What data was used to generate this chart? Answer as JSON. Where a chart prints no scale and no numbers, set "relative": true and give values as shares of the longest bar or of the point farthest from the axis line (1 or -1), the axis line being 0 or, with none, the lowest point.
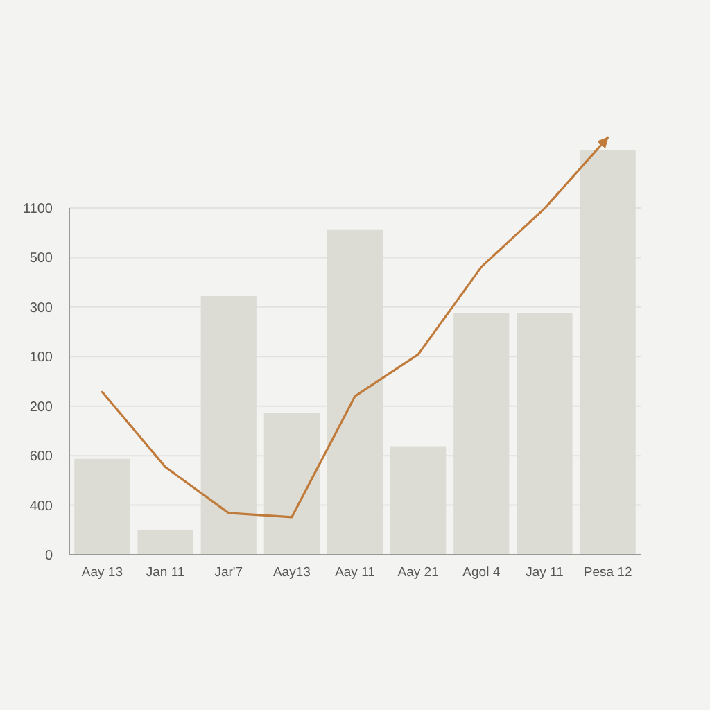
{
  "chart_data": {
    "type": "bar",
    "categories": [
      "Aay 13",
      "Jan 11",
      "Jar'7",
      "Aay13",
      "Aay 11",
      "Aay 21",
      "Agol 4",
      "Jay 11",
      "Pesa 12"
    ],
    "relative": true,
    "annotations": [
      "0",
      "400",
      "600",
      "200",
      "100",
      "300",
      "500",
      "1100"
    ],
    "grid": "y",
    "series": [
      {
        "color": "#dcdcd5",
        "values": [
          0.23,
          0.06,
          0.62,
          0.34,
          0.78,
          0.26,
          0.58,
          0.58,
          0.97
        ]
      },
      {
        "type": "line",
        "color": "#c07a3a",
        "values": [
          0.39,
          0.21,
          0.1,
          0.09,
          0.38,
          0.48,
          0.69,
          0.83,
          1
        ]
      }
    ]
  }
}
